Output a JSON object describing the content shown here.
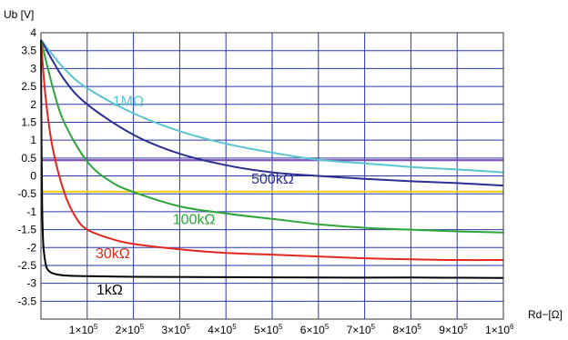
{
  "chart_data": {
    "type": "line",
    "title": "",
    "ylabel": "Ub [V]",
    "xlabel": "Rd−[Ω]",
    "xlim": [
      0,
      1000000
    ],
    "ylim": [
      -4,
      4
    ],
    "grid": true,
    "x_ticks": [
      100000,
      200000,
      300000,
      400000,
      500000,
      600000,
      700000,
      800000,
      900000,
      1000000
    ],
    "x_tick_labels": [
      {
        "mant": "1",
        "exp": "5"
      },
      {
        "mant": "2",
        "exp": "5"
      },
      {
        "mant": "3",
        "exp": "5"
      },
      {
        "mant": "4",
        "exp": "5"
      },
      {
        "mant": "5",
        "exp": "5"
      },
      {
        "mant": "6",
        "exp": "5"
      },
      {
        "mant": "7",
        "exp": "5"
      },
      {
        "mant": "8",
        "exp": "5"
      },
      {
        "mant": "9",
        "exp": "5"
      },
      {
        "mant": "1",
        "exp": "6"
      }
    ],
    "x_tick_times": "×10",
    "y_ticks": [
      4,
      3.5,
      3,
      2.5,
      2,
      1.5,
      1,
      0.5,
      0,
      -0.5,
      -1,
      -1.5,
      -2,
      -2.5,
      -3,
      -3.5
    ],
    "y_tick_labels": [
      "4",
      "3.5",
      "3",
      "2.5",
      "2",
      "1.5",
      "1",
      "0.5",
      "0",
      "-0.5",
      "-1",
      "-1.5",
      "-2",
      "-2.5",
      "-3",
      "-3.5"
    ],
    "series": [
      {
        "name": "1MΩ",
        "color": "#5bc4cf",
        "x": [
          0,
          50000,
          100000,
          200000,
          300000,
          400000,
          500000,
          600000,
          700000,
          800000,
          900000,
          1000000
        ],
        "y": [
          3.8,
          3.0,
          2.45,
          1.75,
          1.25,
          0.9,
          0.65,
          0.45,
          0.35,
          0.25,
          0.18,
          0.1
        ]
      },
      {
        "name": "500kΩ",
        "color": "#2b2f8f",
        "x": [
          0,
          50000,
          100000,
          200000,
          300000,
          400000,
          500000,
          600000,
          700000,
          800000,
          900000,
          1000000
        ],
        "y": [
          3.8,
          2.7,
          2.0,
          1.15,
          0.62,
          0.3,
          0.1,
          0.0,
          -0.08,
          -0.15,
          -0.2,
          -0.27
        ]
      },
      {
        "name": "100kΩ",
        "color": "#2ca53a",
        "x": [
          0,
          25000,
          50000,
          100000,
          150000,
          200000,
          300000,
          400000,
          500000,
          600000,
          700000,
          800000,
          900000,
          1000000
        ],
        "y": [
          3.8,
          2.5,
          1.5,
          0.4,
          -0.15,
          -0.45,
          -0.85,
          -1.05,
          -1.2,
          -1.35,
          -1.45,
          -1.5,
          -1.55,
          -1.58
        ]
      },
      {
        "name": "30kΩ",
        "color": "#e3271e",
        "x": [
          0,
          10000,
          25000,
          50000,
          75000,
          100000,
          150000,
          200000,
          300000,
          400000,
          500000,
          600000,
          700000,
          800000,
          900000,
          1000000
        ],
        "y": [
          3.8,
          2.2,
          0.8,
          -0.45,
          -1.15,
          -1.5,
          -1.75,
          -1.9,
          -2.05,
          -2.15,
          -2.2,
          -2.25,
          -2.3,
          -2.33,
          -2.35,
          -2.35
        ]
      },
      {
        "name": "1kΩ",
        "color": "#000000",
        "x": [
          0,
          1000,
          2500,
          5000,
          10000,
          15000,
          25000,
          50000,
          100000,
          200000,
          400000,
          600000,
          800000,
          1000000
        ],
        "y": [
          3.8,
          1.2,
          -0.8,
          -1.9,
          -2.45,
          -2.62,
          -2.72,
          -2.78,
          -2.8,
          -2.82,
          -2.83,
          -2.84,
          -2.84,
          -2.85
        ]
      }
    ],
    "reference_lines": [
      {
        "y": 0.44,
        "color": "#7a4fb0"
      },
      {
        "y": -0.44,
        "color": "#f2d21b"
      }
    ],
    "annotations": [
      {
        "text": "1MΩ",
        "x": 155000,
        "y": 1.95,
        "color": "#5bc4cf"
      },
      {
        "text": "500kΩ",
        "x": 455000,
        "y": -0.22,
        "color": "#2b2f8f"
      },
      {
        "text": "100kΩ",
        "x": 285000,
        "y": -1.35,
        "color": "#2ca53a"
      },
      {
        "text": "30kΩ",
        "x": 118000,
        "y": -2.3,
        "color": "#e3271e"
      },
      {
        "text": "1kΩ",
        "x": 120000,
        "y": -3.32,
        "color": "#000000"
      }
    ]
  }
}
